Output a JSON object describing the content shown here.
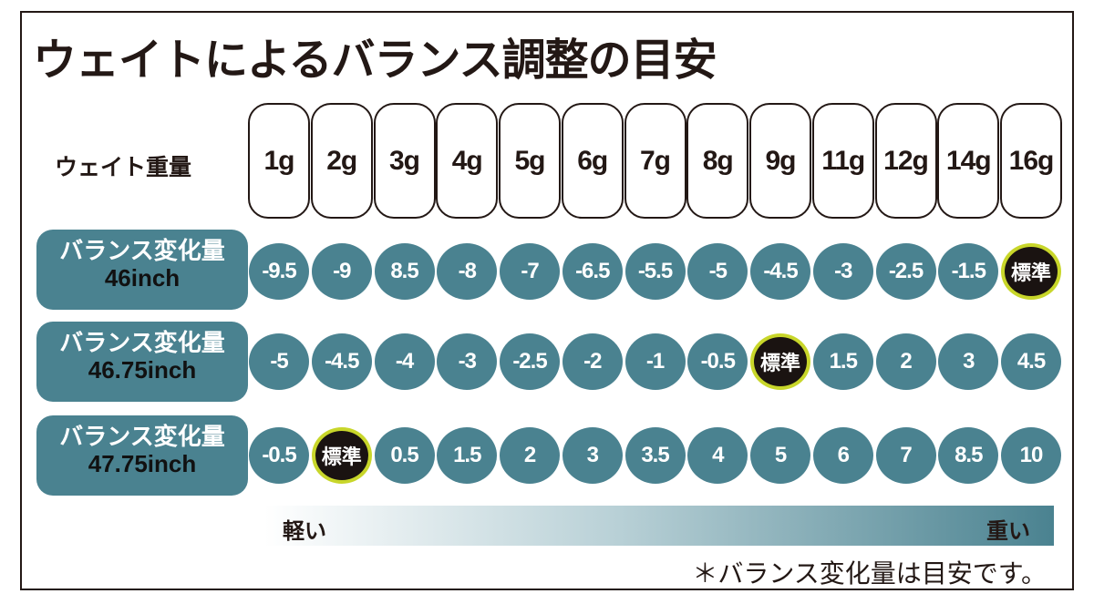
{
  "title": "ウェイトによるバランス調整の目安",
  "weight_label": "ウェイト重量",
  "weights": [
    "1g",
    "2g",
    "3g",
    "4g",
    "5g",
    "6g",
    "7g",
    "8g",
    "9g",
    "11g",
    "12g",
    "14g",
    "16g"
  ],
  "rows": [
    {
      "label": "バランス変化量",
      "length": "46inch",
      "values": [
        "-9.5",
        "-9",
        "8.5",
        "-8",
        "-7",
        "-6.5",
        "-5.5",
        "-5",
        "-4.5",
        "-3",
        "-2.5",
        "-1.5",
        "標準"
      ]
    },
    {
      "label": "バランス変化量",
      "length": "46.75inch",
      "values": [
        "-5",
        "-4.5",
        "-4",
        "-3",
        "-2.5",
        "-2",
        "-1",
        "-0.5",
        "標準",
        "1.5",
        "2",
        "3",
        "4.5"
      ]
    },
    {
      "label": "バランス変化量",
      "length": "47.75inch",
      "values": [
        "-0.5",
        "標準",
        "0.5",
        "1.5",
        "2",
        "3",
        "3.5",
        "4",
        "5",
        "6",
        "7",
        "8.5",
        "10"
      ]
    }
  ],
  "standard_text": "標準",
  "scale": {
    "light": "軽い",
    "heavy": "重い"
  },
  "note": "＊バランス変化量は目安です。",
  "colors": {
    "teal": "#4a8290",
    "standard_fill": "#1a1311",
    "standard_ring": "#c8d62a"
  }
}
